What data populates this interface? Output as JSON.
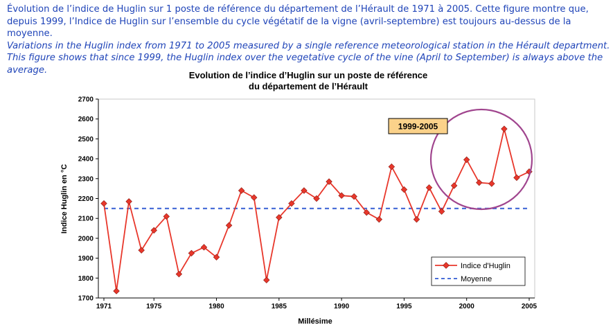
{
  "caption": {
    "fr": "Évolution de l’indice de Huglin sur 1 poste de référence du département de l’Hérault de 1971 à 2005. Cette figure montre que, depuis 1999, l’Indice de Huglin sur l’ensemble du cycle végétatif de la vigne (avril-septembre) est toujours au-dessus de la moyenne.",
    "en": "Variations in the Huglin index from 1971 to 2005 measured by a single reference meteorological station in the Hérault department. This figure shows that since 1999, the Huglin index over the vegetative cycle of the vine (April to September) is always above the average."
  },
  "chart_data": {
    "type": "line",
    "title_line1": "Evolution de l’indice d’Huglin sur un poste de référence",
    "title_line2": "du département de l’Hérault",
    "xlabel": "Millésime",
    "ylabel": "Indice Huglin en °C",
    "xlim": [
      1971,
      2005
    ],
    "ylim": [
      1700,
      2700
    ],
    "x_ticks": [
      1971,
      1975,
      1980,
      1985,
      1990,
      1995,
      2000,
      2005
    ],
    "y_ticks": [
      1700,
      1800,
      1900,
      2000,
      2100,
      2200,
      2300,
      2400,
      2500,
      2600,
      2700
    ],
    "grid": false,
    "legend_position": "bottom-right",
    "series": [
      {
        "name": "Indice d'Huglin",
        "color": "#e8372b",
        "marker": "diamond",
        "x": [
          1971,
          1972,
          1973,
          1974,
          1975,
          1976,
          1977,
          1978,
          1979,
          1980,
          1981,
          1982,
          1983,
          1984,
          1985,
          1986,
          1987,
          1988,
          1989,
          1990,
          1991,
          1992,
          1993,
          1994,
          1995,
          1996,
          1997,
          1998,
          1999,
          2000,
          2001,
          2002,
          2003,
          2004,
          2005
        ],
        "values": [
          2175,
          1735,
          2185,
          1940,
          2040,
          2110,
          1820,
          1925,
          1955,
          1905,
          2065,
          2240,
          2205,
          1790,
          2105,
          2175,
          2240,
          2200,
          2285,
          2215,
          2210,
          2130,
          2095,
          2360,
          2245,
          2095,
          2255,
          2135,
          2265,
          2395,
          2280,
          2275,
          2550,
          2305,
          2335
        ]
      },
      {
        "name": "Moyenne",
        "color": "#4a6fd8",
        "style": "dashed",
        "value": 2150
      }
    ],
    "annotation": {
      "label": "1999-2005",
      "box_color": "#fbd28a",
      "ellipse_color": "#a0458e"
    }
  }
}
